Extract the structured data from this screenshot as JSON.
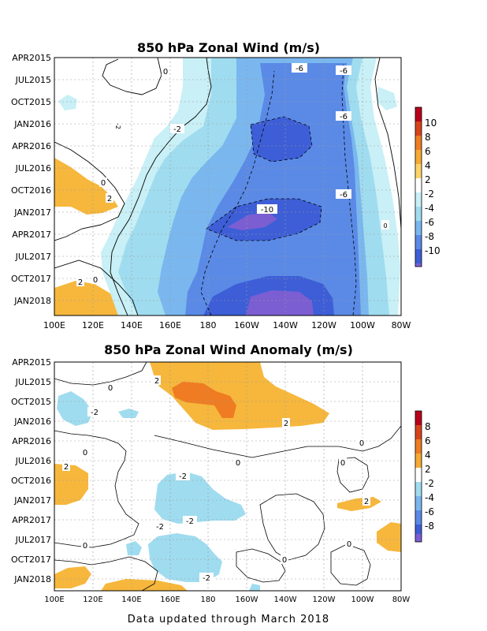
{
  "footer": "Data updated through March 2018",
  "chart_data": [
    {
      "type": "heatmap",
      "title": "850 hPa Zonal Wind (m/s)",
      "xlabel": "",
      "ylabel": "",
      "x_ticks": [
        "100E",
        "120E",
        "140E",
        "160E",
        "180",
        "160W",
        "140W",
        "120W",
        "100W",
        "80W"
      ],
      "y_ticks": [
        "APR2015",
        "JUL2015",
        "OCT2015",
        "JAN2016",
        "APR2016",
        "JUL2016",
        "OCT2016",
        "JAN2017",
        "APR2017",
        "JUL2017",
        "OCT2017",
        "JAN2018"
      ],
      "colorbar": {
        "labels": [
          "10",
          "8",
          "6",
          "4",
          "2",
          "-2",
          "-4",
          "-6",
          "-8",
          "-10"
        ],
        "colors": [
          "#b8001a",
          "#d8431c",
          "#ef7c22",
          "#f6aa33",
          "#fbd46a",
          "#ffffff",
          "#c8f0f6",
          "#a0dcef",
          "#7ab7ef",
          "#5a8ae6",
          "#3d5ed6",
          "#7b5ed2"
        ]
      },
      "contour_labels": [
        "0",
        "-2",
        "-2",
        "0",
        "2",
        "2",
        "0",
        "-6",
        "-6",
        "-6",
        "-6",
        "-10",
        "0"
      ],
      "grid": true
    },
    {
      "type": "heatmap",
      "title": "850 hPa Zonal Wind Anomaly (m/s)",
      "xlabel": "",
      "ylabel": "",
      "x_ticks": [
        "100E",
        "120E",
        "140E",
        "160E",
        "180",
        "160W",
        "140W",
        "120W",
        "100W",
        "80W"
      ],
      "y_ticks": [
        "APR2015",
        "JUL2015",
        "OCT2015",
        "JAN2016",
        "APR2016",
        "JUL2016",
        "OCT2016",
        "JAN2017",
        "APR2017",
        "JUL2017",
        "OCT2017",
        "JAN2018"
      ],
      "colorbar": {
        "labels": [
          "8",
          "6",
          "4",
          "2",
          "-2",
          "-4",
          "-6",
          "-8"
        ],
        "colors": [
          "#b8001a",
          "#d8431c",
          "#ef7c22",
          "#f6aa33",
          "#ffffff",
          "#a0dcef",
          "#7ab7ef",
          "#5a8ae6",
          "#3d5ed6",
          "#7b5ed2"
        ]
      },
      "contour_labels": [
        "2",
        "0",
        "-2",
        "2",
        "0",
        "0",
        "2",
        "-2",
        "0",
        "-2",
        "-2",
        "0",
        "0",
        "-2",
        "2",
        "0",
        "0",
        "-2"
      ],
      "grid": true
    }
  ]
}
